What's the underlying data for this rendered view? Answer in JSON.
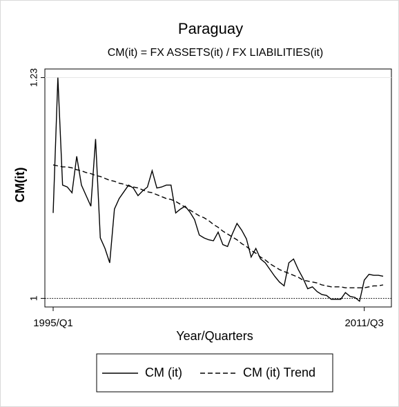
{
  "chart_data": {
    "type": "line",
    "title": "Paraguay",
    "subtitle": "CM(it) = FX ASSETS(it) / FX LIABILITIES(it)",
    "y_label": "CM(it)",
    "x_label": "Year/Quarters",
    "categories": [
      "1995/Q1",
      null,
      null,
      null,
      null,
      null,
      null,
      null,
      null,
      null,
      null,
      null,
      null,
      null,
      null,
      null,
      null,
      null,
      null,
      null,
      null,
      null,
      null,
      null,
      null,
      null,
      null,
      null,
      null,
      null,
      null,
      null,
      null,
      null,
      null,
      null,
      null,
      null,
      null,
      null,
      null,
      null,
      null,
      null,
      null,
      null,
      null,
      null,
      null,
      null,
      null,
      null,
      null,
      null,
      null,
      null,
      null,
      null,
      null,
      null,
      null,
      null,
      null,
      null,
      null,
      null,
      "2011/Q3",
      null,
      null,
      null,
      null
    ],
    "series": [
      {
        "name": "CM (it)",
        "color": "#000000",
        "dash": "solid",
        "values": [
          1.089,
          1.23,
          1.118,
          1.116,
          1.11,
          1.148,
          1.118,
          1.107,
          1.096,
          1.166,
          1.063,
          1.052,
          1.037,
          1.093,
          1.104,
          1.111,
          1.118,
          1.115,
          1.107,
          1.112,
          1.116,
          1.133,
          1.115,
          1.116,
          1.118,
          1.118,
          1.089,
          1.093,
          1.096,
          1.09,
          1.082,
          1.066,
          1.063,
          1.061,
          1.06,
          1.069,
          1.056,
          1.054,
          1.067,
          1.078,
          1.071,
          1.062,
          1.043,
          1.052,
          1.041,
          1.037,
          1.03,
          1.023,
          1.017,
          1.013,
          1.037,
          1.041,
          1.03,
          1.021,
          1.01,
          1.012,
          1.007,
          1.004,
          1.003,
          0.999,
          0.999,
          0.999,
          1.006,
          1.002,
          1.001,
          0.997,
          1.019,
          1.025,
          1.024,
          1.024,
          1.023
        ]
      },
      {
        "name": "CM (it) Trend",
        "color": "#000000",
        "dash": "dashed",
        "values": [
          1.139,
          1.138,
          1.137,
          1.137,
          1.136,
          1.134,
          1.133,
          1.131,
          1.13,
          1.128,
          1.127,
          1.125,
          1.123,
          1.122,
          1.12,
          1.119,
          1.117,
          1.116,
          1.115,
          1.113,
          1.111,
          1.11,
          1.108,
          1.106,
          1.104,
          1.103,
          1.101,
          1.098,
          1.095,
          1.092,
          1.089,
          1.086,
          1.084,
          1.081,
          1.077,
          1.074,
          1.07,
          1.067,
          1.064,
          1.061,
          1.057,
          1.054,
          1.05,
          1.047,
          1.043,
          1.04,
          1.036,
          1.033,
          1.03,
          1.028,
          1.026,
          1.024,
          1.022,
          1.019,
          1.018,
          1.017,
          1.016,
          1.014,
          1.013,
          1.012,
          1.012,
          1.012,
          1.011,
          1.011,
          1.011,
          1.011,
          1.011,
          1.012,
          1.013,
          1.013,
          1.014
        ]
      }
    ],
    "yticks": [
      1.23,
      1
    ],
    "ylim": [
      0.991,
      1.239
    ],
    "reference_line": 1,
    "grid": true,
    "legend": "bottom"
  }
}
